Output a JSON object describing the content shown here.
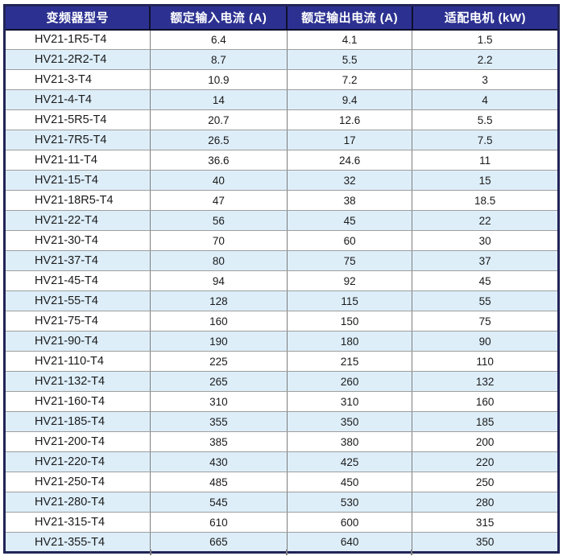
{
  "table": {
    "columns": [
      "变频器型号",
      "额定输入电流 (A)",
      "额定输出电流 (A)",
      "适配电机 (kW)"
    ],
    "rows": [
      [
        "HV21-1R5-T4",
        "6.4",
        "4.1",
        "1.5"
      ],
      [
        "HV21-2R2-T4",
        "8.7",
        "5.5",
        "2.2"
      ],
      [
        "HV21-3-T4",
        "10.9",
        "7.2",
        "3"
      ],
      [
        "HV21-4-T4",
        "14",
        "9.4",
        "4"
      ],
      [
        "HV21-5R5-T4",
        "20.7",
        "12.6",
        "5.5"
      ],
      [
        "HV21-7R5-T4",
        "26.5",
        "17",
        "7.5"
      ],
      [
        "HV21-11-T4",
        "36.6",
        "24.6",
        "11"
      ],
      [
        "HV21-15-T4",
        "40",
        "32",
        "15"
      ],
      [
        "HV21-18R5-T4",
        "47",
        "38",
        "18.5"
      ],
      [
        "HV21-22-T4",
        "56",
        "45",
        "22"
      ],
      [
        "HV21-30-T4",
        "70",
        "60",
        "30"
      ],
      [
        "HV21-37-T4",
        "80",
        "75",
        "37"
      ],
      [
        "HV21-45-T4",
        "94",
        "92",
        "45"
      ],
      [
        "HV21-55-T4",
        "128",
        "115",
        "55"
      ],
      [
        "HV21-75-T4",
        "160",
        "150",
        "75"
      ],
      [
        "HV21-90-T4",
        "190",
        "180",
        "90"
      ],
      [
        "HV21-110-T4",
        "225",
        "215",
        "110"
      ],
      [
        "HV21-132-T4",
        "265",
        "260",
        "132"
      ],
      [
        "HV21-160-T4",
        "310",
        "310",
        "160"
      ],
      [
        "HV21-185-T4",
        "355",
        "350",
        "185"
      ],
      [
        "HV21-200-T4",
        "385",
        "380",
        "200"
      ],
      [
        "HV21-220-T4",
        "430",
        "425",
        "220"
      ],
      [
        "HV21-250-T4",
        "485",
        "450",
        "250"
      ],
      [
        "HV21-280-T4",
        "545",
        "530",
        "280"
      ],
      [
        "HV21-315-T4",
        "610",
        "600",
        "315"
      ],
      [
        "HV21-355-T4",
        "665",
        "640",
        "350"
      ]
    ]
  },
  "colors": {
    "header_bg": "#2c3191",
    "header_text": "#ffffff",
    "header_grid": "#10102e",
    "outer_border": "#212457",
    "row_bg": "#ffffff",
    "row_alt_bg": "#ddeef9",
    "grid_v": "#7d7d7d",
    "grid_h": "#9e9e9e",
    "body_text": "#1a1a1a"
  }
}
